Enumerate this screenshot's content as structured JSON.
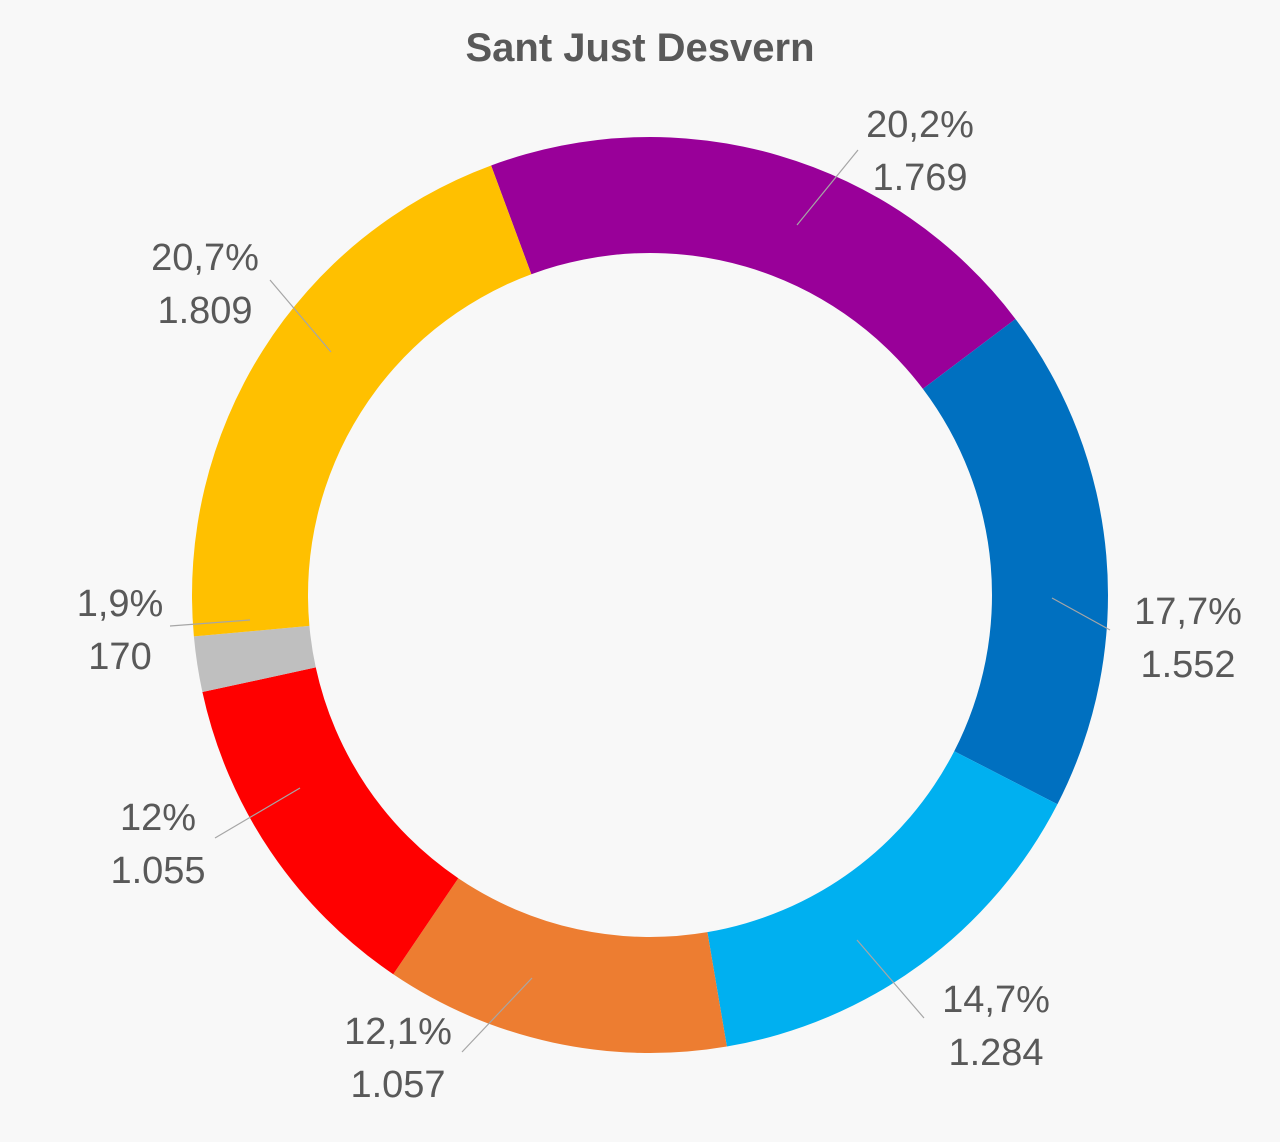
{
  "chart_data": {
    "type": "pie",
    "title": "Sant Just Desvern",
    "categories": [
      "",
      "",
      "",
      "",
      "",
      "",
      ""
    ],
    "values": [
      1769,
      1552,
      1284,
      1057,
      1055,
      170,
      1809
    ],
    "percent_labels": [
      "20,2%",
      "17,7%",
      "14,7%",
      "12,1%",
      "12%",
      "1,9%",
      "20,7%"
    ],
    "value_labels": [
      "1.769",
      "1.552",
      "1.284",
      "1.057",
      "1.055",
      "170",
      "1.809"
    ],
    "colors": [
      "#990099",
      "#0070c0",
      "#00b0f0",
      "#ed7d31",
      "#ff0000",
      "#bfbfbf",
      "#ffc000"
    ],
    "donut": true,
    "legend": "none"
  }
}
